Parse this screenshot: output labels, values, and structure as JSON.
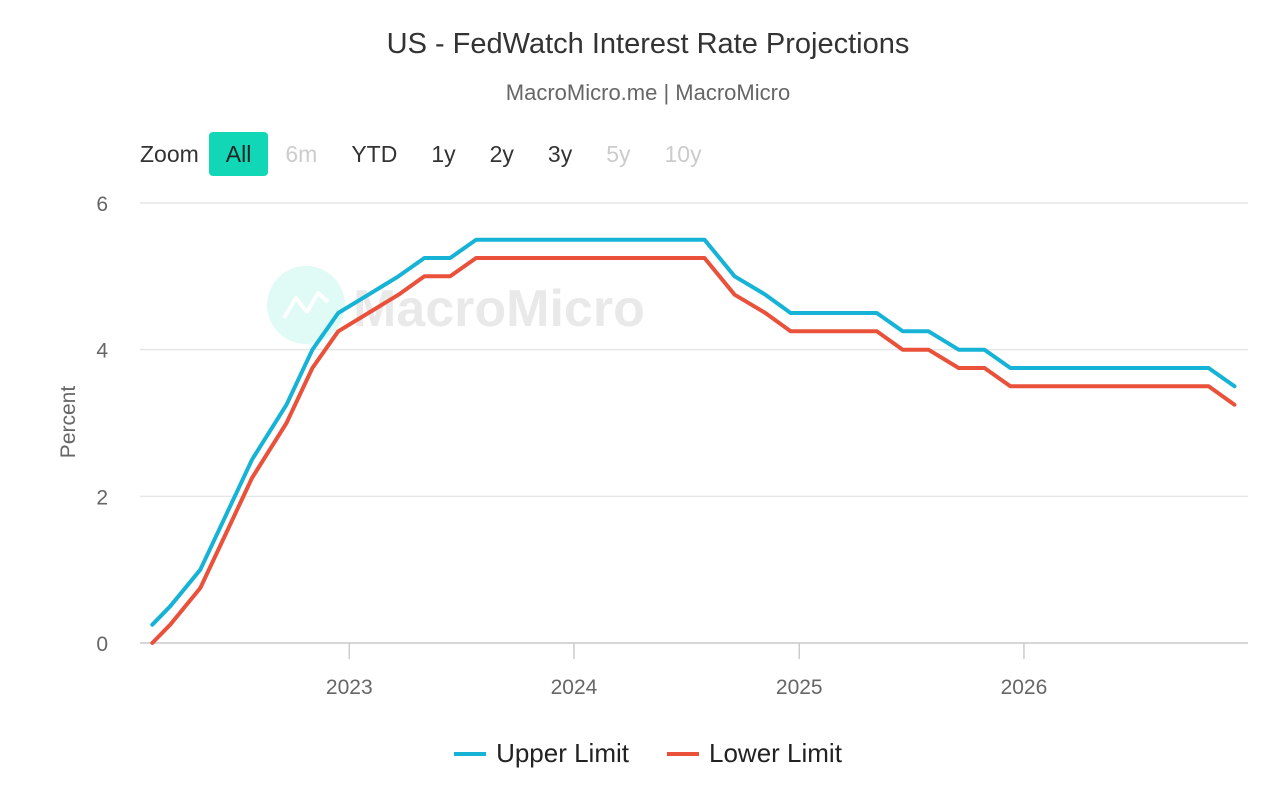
{
  "title": "US - FedWatch Interest Rate Projections",
  "subtitle": "MacroMicro.me | MacroMicro",
  "watermark": "MacroMicro",
  "zoom": {
    "label": "Zoom",
    "buttons": [
      {
        "label": "All",
        "state": "active"
      },
      {
        "label": "6m",
        "state": "disabled"
      },
      {
        "label": "YTD",
        "state": "normal"
      },
      {
        "label": "1y",
        "state": "normal"
      },
      {
        "label": "2y",
        "state": "normal"
      },
      {
        "label": "3y",
        "state": "normal"
      },
      {
        "label": "5y",
        "state": "disabled"
      },
      {
        "label": "10y",
        "state": "disabled"
      }
    ]
  },
  "colors": {
    "upper": "#16b3d6",
    "lower": "#e9513a",
    "zoom_active": "#11d7b7",
    "grid": "#e6e6e6",
    "watermark": "#11d7b7"
  },
  "chart_data": {
    "type": "line",
    "title": "US - FedWatch Interest Rate Projections",
    "subtitle": "MacroMicro.me | MacroMicro",
    "ylabel": "Percent",
    "xlabel": "",
    "ylim": [
      0,
      6
    ],
    "xlim": [
      "2022-01-26",
      "2026-12-31"
    ],
    "yticks": [
      "0",
      "2",
      "4",
      "6"
    ],
    "xticks": [
      {
        "date": "2023-01-01",
        "label": "2023"
      },
      {
        "date": "2024-01-01",
        "label": "2024"
      },
      {
        "date": "2025-01-01",
        "label": "2025"
      },
      {
        "date": "2026-01-01",
        "label": "2026"
      }
    ],
    "grid": true,
    "legend_position": "bottom",
    "series": [
      {
        "name": "Upper Limit",
        "points": [
          [
            "2022-02-15",
            0.25
          ],
          [
            "2022-03-16",
            0.5
          ],
          [
            "2022-05-04",
            1.0
          ],
          [
            "2022-06-15",
            1.75
          ],
          [
            "2022-07-27",
            2.5
          ],
          [
            "2022-09-21",
            3.25
          ],
          [
            "2022-11-02",
            4.0
          ],
          [
            "2022-12-14",
            4.5
          ],
          [
            "2023-02-01",
            4.75
          ],
          [
            "2023-03-22",
            5.0
          ],
          [
            "2023-05-03",
            5.25
          ],
          [
            "2023-06-14",
            5.25
          ],
          [
            "2023-07-26",
            5.5
          ],
          [
            "2024-07-31",
            5.5
          ],
          [
            "2024-09-18",
            5.0
          ],
          [
            "2024-11-07",
            4.75
          ],
          [
            "2024-12-18",
            4.5
          ],
          [
            "2025-05-07",
            4.5
          ],
          [
            "2025-06-18",
            4.25
          ],
          [
            "2025-07-30",
            4.25
          ],
          [
            "2025-09-17",
            4.0
          ],
          [
            "2025-10-29",
            4.0
          ],
          [
            "2025-12-10",
            3.75
          ],
          [
            "2026-10-28",
            3.75
          ],
          [
            "2026-12-09",
            3.5
          ]
        ]
      },
      {
        "name": "Lower Limit",
        "points": [
          [
            "2022-02-15",
            0.0
          ],
          [
            "2022-03-16",
            0.25
          ],
          [
            "2022-05-04",
            0.75
          ],
          [
            "2022-06-15",
            1.5
          ],
          [
            "2022-07-27",
            2.25
          ],
          [
            "2022-09-21",
            3.0
          ],
          [
            "2022-11-02",
            3.75
          ],
          [
            "2022-12-14",
            4.25
          ],
          [
            "2023-02-01",
            4.5
          ],
          [
            "2023-03-22",
            4.75
          ],
          [
            "2023-05-03",
            5.0
          ],
          [
            "2023-06-14",
            5.0
          ],
          [
            "2023-07-26",
            5.25
          ],
          [
            "2024-07-31",
            5.25
          ],
          [
            "2024-09-18",
            4.75
          ],
          [
            "2024-11-07",
            4.5
          ],
          [
            "2024-12-18",
            4.25
          ],
          [
            "2025-05-07",
            4.25
          ],
          [
            "2025-06-18",
            4.0
          ],
          [
            "2025-07-30",
            4.0
          ],
          [
            "2025-09-17",
            3.75
          ],
          [
            "2025-10-29",
            3.75
          ],
          [
            "2025-12-10",
            3.5
          ],
          [
            "2026-10-28",
            3.5
          ],
          [
            "2026-12-09",
            3.25
          ]
        ]
      }
    ]
  }
}
